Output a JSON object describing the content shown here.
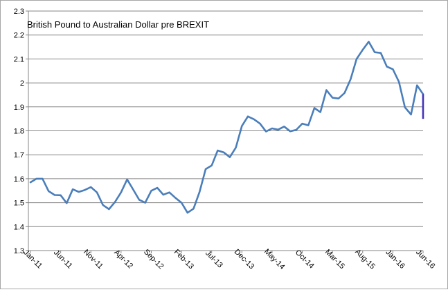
{
  "chart_data": {
    "type": "line",
    "title": "British Pound to Australian Dollar pre BREXIT",
    "xlabel": "",
    "ylabel": "",
    "ylim": [
      1.3,
      2.3
    ],
    "yticks": [
      "1.3",
      "1.4",
      "1.5",
      "1.6",
      "1.7",
      "1.8",
      "1.9",
      "2",
      "2.1",
      "2.2",
      "2.3"
    ],
    "grid": true,
    "legend": "none",
    "x_tick_labels": [
      "Jan-11",
      "Jun-11",
      "Nov-11",
      "Apr-12",
      "Sep-12",
      "Feb-13",
      "Jul-13",
      "Dec-13",
      "May-14",
      "Oct-14",
      "Mar-15",
      "Aug-15",
      "Jan-16",
      "Jun-16"
    ],
    "x_tick_step_months": 5,
    "start_label": "Jan-11",
    "series": [
      {
        "color": "#4a7ebb",
        "values": [
          1.585,
          1.6,
          1.6,
          1.548,
          1.532,
          1.531,
          1.498,
          1.556,
          1.545,
          1.553,
          1.565,
          1.543,
          1.49,
          1.473,
          1.503,
          1.543,
          1.597,
          1.555,
          1.512,
          1.5,
          1.55,
          1.562,
          1.533,
          1.543,
          1.52,
          1.5,
          1.458,
          1.475,
          1.545,
          1.64,
          1.655,
          1.718,
          1.71,
          1.69,
          1.73,
          1.82,
          1.86,
          1.848,
          1.83,
          1.797,
          1.81,
          1.805,
          1.818,
          1.798,
          1.804,
          1.83,
          1.823,
          1.895,
          1.878,
          1.97,
          1.938,
          1.935,
          1.958,
          2.015,
          2.1,
          2.138,
          2.172,
          2.128,
          2.125,
          2.068,
          2.057,
          2.005,
          1.898,
          1.868,
          1.99,
          1.953
        ]
      }
    ],
    "final_drop": {
      "color": "#4433bb",
      "values": [
        1.953,
        1.85
      ]
    }
  }
}
